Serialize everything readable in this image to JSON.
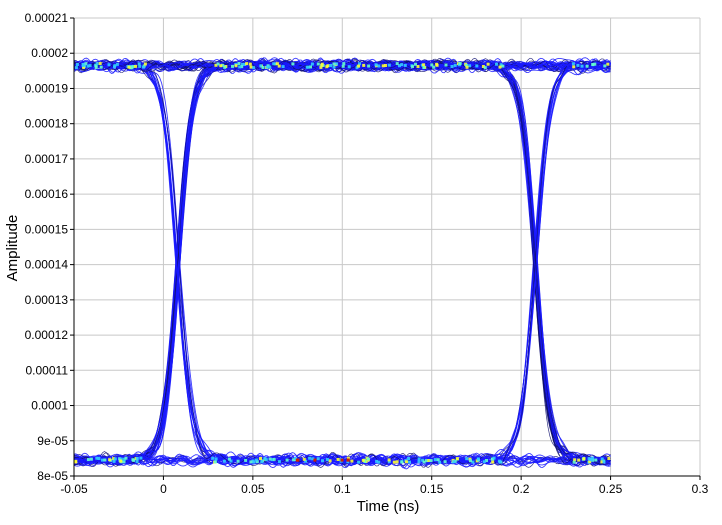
{
  "chart_data": {
    "type": "line",
    "title": "",
    "xlabel": "Time (ns)",
    "ylabel": "Amplitude",
    "xlim": [
      -0.05,
      0.3
    ],
    "ylim": [
      8e-05,
      0.00021
    ],
    "grid": true,
    "x_ticks": [
      -0.05,
      0,
      0.05,
      0.1,
      0.15,
      0.2,
      0.25,
      0.3
    ],
    "x_tick_labels": [
      "-0.05",
      "0",
      "0.05",
      "0.1",
      "0.15",
      "0.2",
      "0.25",
      "0.3"
    ],
    "y_ticks": [
      8e-05,
      9e-05,
      0.0001,
      0.00011,
      0.00012,
      0.00013,
      0.00014,
      0.00015,
      0.00016,
      0.00017,
      0.00018,
      0.00019,
      0.0002,
      0.00021
    ],
    "y_tick_labels": [
      "8e-05",
      "9e-05",
      "0.0001",
      "0.00011",
      "0.00012",
      "0.00013",
      "0.00014",
      "0.00015",
      "0.00016",
      "0.00017",
      "0.00018",
      "0.00019",
      "0.0002",
      "0.00021"
    ],
    "data_x_range": [
      -0.05,
      0.25
    ],
    "high_level": 0.0001965,
    "low_level": 8.45e-05,
    "crossing_level": 0.00015,
    "crossings": [
      0.008,
      0.208
    ],
    "colors": {
      "trace": "#1a1aff",
      "trace_dark": "#101070",
      "density_mid": "#33ccff",
      "density_high": "#ffff33",
      "density_peak": "#cc2200",
      "grid": "#c8c8c8"
    }
  }
}
